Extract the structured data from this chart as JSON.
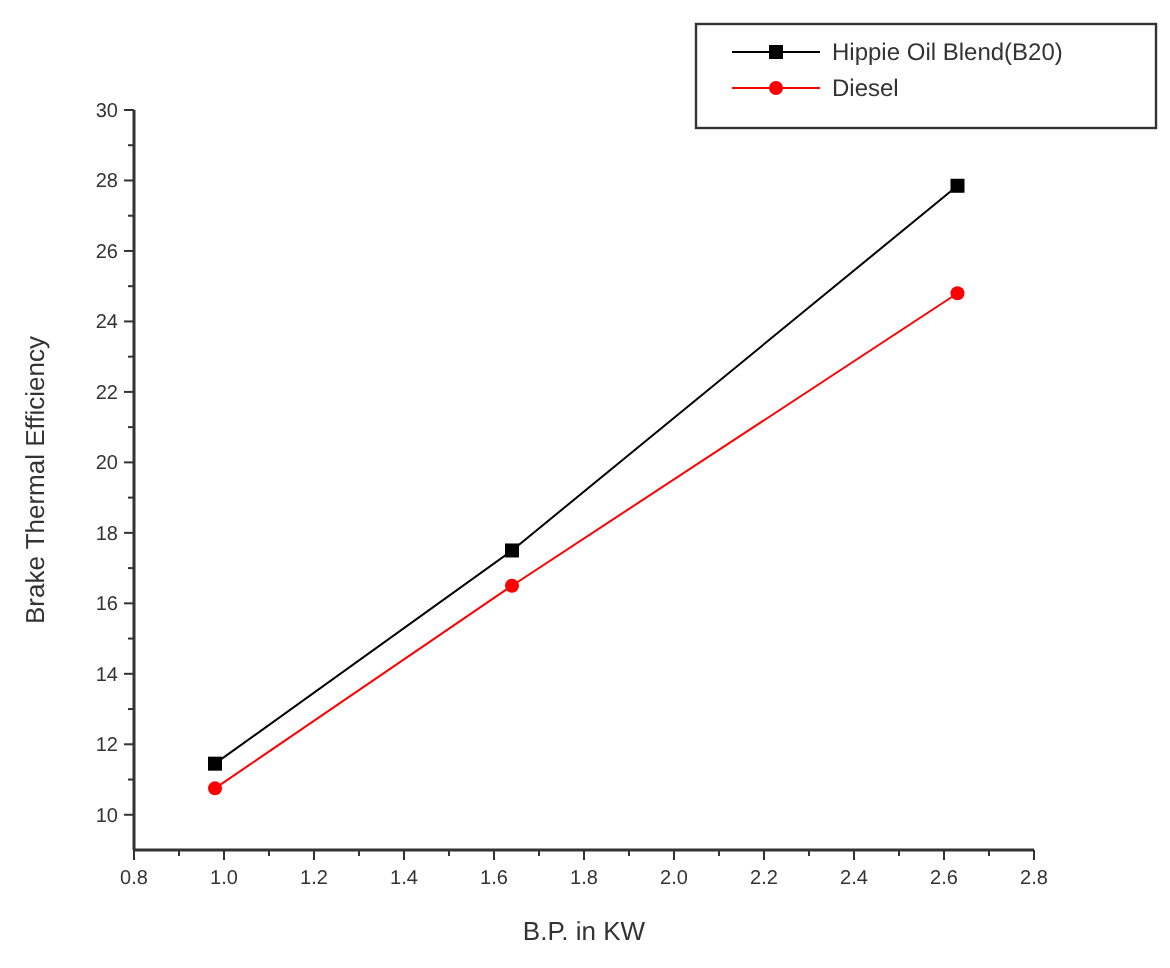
{
  "chart_data": {
    "type": "line",
    "xlabel": "B.P. in KW",
    "ylabel": "Brake Thermal Efficiency",
    "x": [
      0.98,
      1.64,
      2.63
    ],
    "series": [
      {
        "name": "Hippie Oil Blend(B20)",
        "color": "#000000",
        "marker": "square",
        "values": [
          11.45,
          17.5,
          27.85
        ]
      },
      {
        "name": "Diesel",
        "color": "#ff0000",
        "marker": "circle",
        "values": [
          10.75,
          16.5,
          24.8
        ]
      }
    ],
    "xlim": [
      0.8,
      2.8
    ],
    "xticks": [
      0.8,
      {
        "value": 1,
        "label": "1.0"
      },
      1.2,
      1.4,
      1.6,
      1.8,
      {
        "value": 2,
        "label": "2.0"
      },
      2.2,
      2.4,
      2.6,
      2.8
    ],
    "ylim": [
      9,
      30
    ],
    "yticks": [
      10,
      12,
      14,
      16,
      18,
      20,
      22,
      24,
      26,
      28,
      30
    ],
    "grid": false,
    "legend": "top right",
    "line_style": "solid"
  }
}
